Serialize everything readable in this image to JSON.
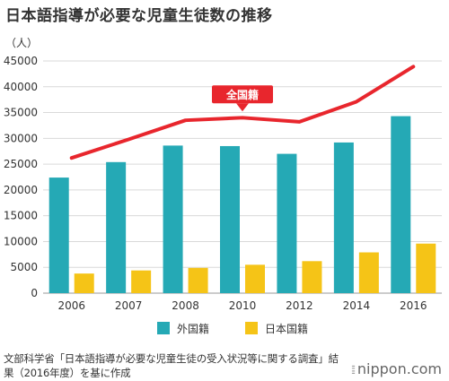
{
  "chart_data": {
    "type": "bar",
    "title": "日本語指導が必要な児童生徒数の推移",
    "unit_label": "（人）",
    "categories": [
      "2006",
      "2007",
      "2008",
      "2010",
      "2012",
      "2014",
      "2016"
    ],
    "series": [
      {
        "name": "外国籍",
        "type": "bar",
        "color": "#25a9b5",
        "values": [
          22400,
          25400,
          28600,
          28500,
          27000,
          29200,
          34300
        ]
      },
      {
        "name": "日本国籍",
        "type": "bar",
        "color": "#f5c417",
        "values": [
          3800,
          4400,
          4900,
          5500,
          6200,
          7900,
          9600
        ]
      },
      {
        "name": "全国籍",
        "type": "line",
        "color": "#e8262d",
        "values": [
          26200,
          29800,
          33500,
          34000,
          33200,
          37100,
          43900
        ]
      }
    ],
    "ylim": [
      0,
      45000
    ],
    "yticks": [
      "0",
      "5000",
      "10000",
      "15000",
      "20000",
      "25000",
      "30000",
      "35000",
      "40000",
      "45000"
    ],
    "ytick_values": [
      0,
      5000,
      10000,
      15000,
      20000,
      25000,
      30000,
      35000,
      40000,
      45000
    ],
    "grid": true,
    "legend_position": "bottom",
    "line_annotation": "全国籍"
  },
  "source_note": "文部科学省「日本語指導が必要な児童生徒の受入状況等に関する調査」結果（2016年度）を基に作成",
  "brand": {
    "name": "nippon.com",
    "mark": "⦙⦙⦙"
  }
}
